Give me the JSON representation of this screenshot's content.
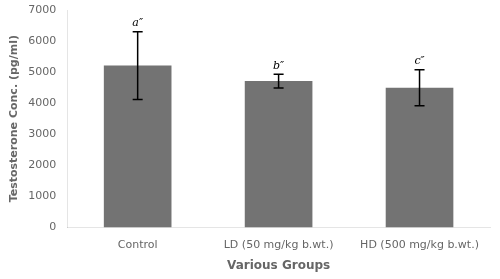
{
  "chart_data": {
    "type": "bar",
    "xlabel": "Various Groups",
    "ylabel": "Testosterone Conc. (pg/ml)",
    "categories": [
      "Control",
      "LD (50 mg/kg b.wt.)",
      "HD (500 mg/kg b.wt.)"
    ],
    "values": [
      5210,
      4710,
      4500
    ],
    "errors": [
      1090,
      220,
      580
    ],
    "annotations": [
      "a″",
      "b″",
      "c″"
    ],
    "color": "#737373",
    "ylim": [
      0,
      7000
    ],
    "yticks": [
      0,
      1000,
      2000,
      3000,
      4000,
      5000,
      6000,
      7000
    ],
    "grid": false,
    "legend": false
  }
}
